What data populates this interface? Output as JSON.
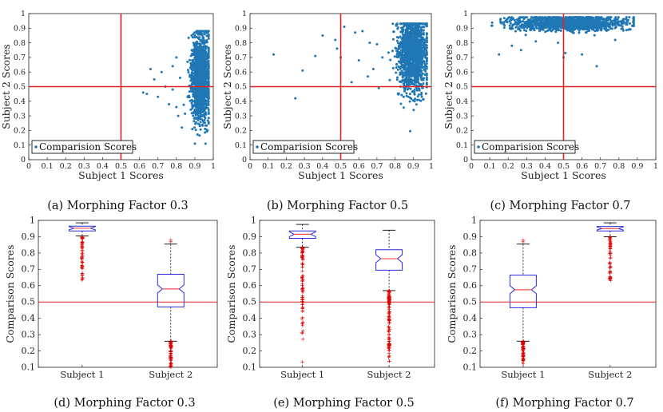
{
  "chart_data": [
    {
      "type": "scatter",
      "caption": "(a) Morphing Factor 0.3",
      "xlabel": "Subject 1 Scores",
      "ylabel": "Subject 2 Scores",
      "xlim": [
        0,
        1
      ],
      "ylim": [
        0,
        1
      ],
      "xticks": [
        "0",
        "0.1",
        "0.2",
        "0.3",
        "0.4",
        "0.5",
        "0.6",
        "0.7",
        "0.8",
        "0.9",
        "1"
      ],
      "yticks": [
        "0",
        "0.1",
        "0.2",
        "0.3",
        "0.4",
        "0.5",
        "0.6",
        "0.7",
        "0.8",
        "0.9",
        "1"
      ],
      "legend": "Comparision Scores",
      "legend_position": "bottom-left",
      "threshold_x": 0.5,
      "threshold_y": 0.5,
      "cloud": {
        "count": 1400,
        "x_mean": 0.93,
        "x_sd": 0.025,
        "x_range": [
          0.84,
          0.975
        ],
        "y_mean": 0.56,
        "y_sd": 0.15,
        "y_range": [
          0.11,
          0.88
        ]
      },
      "outliers": [
        [
          0.62,
          0.46
        ],
        [
          0.64,
          0.45
        ],
        [
          0.66,
          0.62
        ],
        [
          0.68,
          0.55
        ],
        [
          0.7,
          0.43
        ],
        [
          0.72,
          0.6
        ],
        [
          0.74,
          0.5
        ],
        [
          0.76,
          0.38
        ],
        [
          0.78,
          0.64
        ],
        [
          0.8,
          0.7
        ],
        [
          0.81,
          0.3
        ],
        [
          0.82,
          0.56
        ],
        [
          0.83,
          0.22
        ],
        [
          0.78,
          0.48
        ],
        [
          0.8,
          0.36
        ]
      ]
    },
    {
      "type": "scatter",
      "caption": "(b) Morphing Factor 0.5",
      "xlabel": "Subject 1 Scores",
      "ylabel": "Subject 2 Scores",
      "xlim": [
        0,
        1
      ],
      "ylim": [
        0,
        1
      ],
      "xticks": [
        "0",
        "0.1",
        "0.2",
        "0.3",
        "0.4",
        "0.5",
        "0.6",
        "0.7",
        "0.8",
        "0.9",
        "1"
      ],
      "yticks": [
        "0",
        "0.1",
        "0.2",
        "0.3",
        "0.4",
        "0.5",
        "0.6",
        "0.7",
        "0.8",
        "0.9",
        "1"
      ],
      "legend": "Comparision Scores",
      "legend_position": "bottom-left",
      "threshold_x": 0.5,
      "threshold_y": 0.5,
      "cloud": {
        "count": 1400,
        "x_mean": 0.895,
        "x_sd": 0.04,
        "x_range": [
          0.74,
          0.975
        ],
        "y_mean": 0.73,
        "y_sd": 0.13,
        "y_range": [
          0.12,
          0.93
        ]
      },
      "outliers": [
        [
          0.13,
          0.72
        ],
        [
          0.25,
          0.42
        ],
        [
          0.29,
          0.61
        ],
        [
          0.36,
          0.71
        ],
        [
          0.4,
          0.85
        ],
        [
          0.47,
          0.82
        ],
        [
          0.48,
          0.76
        ],
        [
          0.5,
          0.7
        ],
        [
          0.52,
          0.91
        ],
        [
          0.56,
          0.53
        ],
        [
          0.6,
          0.68
        ],
        [
          0.62,
          0.88
        ],
        [
          0.65,
          0.57
        ],
        [
          0.66,
          0.8
        ],
        [
          0.68,
          0.62
        ],
        [
          0.7,
          0.79
        ],
        [
          0.71,
          0.49
        ],
        [
          0.73,
          0.7
        ],
        [
          0.58,
          0.87
        ]
      ]
    },
    {
      "type": "scatter",
      "caption": "(c) Morphing Factor 0.7",
      "xlabel": "Subject 1 Scores",
      "ylabel": "Subject 2 Scores",
      "xlim": [
        0,
        1
      ],
      "ylim": [
        0,
        1
      ],
      "xticks": [
        "0",
        "0.1",
        "0.2",
        "0.3",
        "0.4",
        "0.5",
        "0.6",
        "0.7",
        "0.8",
        "0.9",
        "1"
      ],
      "yticks": [
        "0",
        "0.1",
        "0.2",
        "0.3",
        "0.4",
        "0.5",
        "0.6",
        "0.7",
        "0.8",
        "0.9",
        "1"
      ],
      "legend": "Comparision Scores",
      "legend_position": "bottom-left",
      "threshold_x": 0.5,
      "threshold_y": 0.5,
      "cloud": {
        "count": 1400,
        "x_mean": 0.53,
        "x_sd": 0.15,
        "x_range": [
          0.11,
          0.88
        ],
        "y_mean": 0.935,
        "y_sd": 0.025,
        "y_range": [
          0.84,
          0.975
        ]
      },
      "outliers": [
        [
          0.15,
          0.72
        ],
        [
          0.27,
          0.75
        ],
        [
          0.47,
          0.8
        ],
        [
          0.5,
          0.7
        ],
        [
          0.51,
          0.73
        ],
        [
          0.6,
          0.72
        ],
        [
          0.68,
          0.64
        ],
        [
          0.35,
          0.81
        ],
        [
          0.78,
          0.82
        ],
        [
          0.22,
          0.78
        ]
      ]
    },
    {
      "type": "box",
      "caption": "(d) Morphing Factor 0.3",
      "ylabel": "Comparison Scores",
      "categories": [
        "Subject 1",
        "Subject 2"
      ],
      "ylim": [
        0.1,
        1.0
      ],
      "yticks": [
        "0.1",
        "0.2",
        "0.3",
        "0.4",
        "0.5",
        "0.6",
        "0.7",
        "0.8",
        "0.9",
        "1"
      ],
      "threshold_y": 0.5,
      "boxes": [
        {
          "q1": 0.935,
          "median": 0.952,
          "q3": 0.965,
          "whisker_low": 0.905,
          "whisker_high": 0.985,
          "outliers_range": [
            0.63,
            0.9
          ],
          "outlier_count": 60
        },
        {
          "q1": 0.47,
          "median": 0.58,
          "q3": 0.67,
          "whisker_low": 0.26,
          "whisker_high": 0.855,
          "outliers_range": [
            0.1,
            0.26
          ],
          "outlier_count": 70,
          "extra_outliers": [
            0.88,
            0.87
          ]
        }
      ]
    },
    {
      "type": "box",
      "caption": "(e) Morphing Factor 0.5",
      "ylabel": "Comparison Scores",
      "categories": [
        "Subject 1",
        "Subject 2"
      ],
      "ylim": [
        0.1,
        1.0
      ],
      "yticks": [
        "0.1",
        "0.2",
        "0.3",
        "0.4",
        "0.5",
        "0.6",
        "0.7",
        "0.8",
        "0.9",
        "1"
      ],
      "threshold_y": 0.5,
      "boxes": [
        {
          "q1": 0.89,
          "median": 0.915,
          "q3": 0.935,
          "whisker_low": 0.835,
          "whisker_high": 0.975,
          "outliers_range": [
            0.27,
            0.835
          ],
          "outlier_count": 90,
          "extra_outliers": [
            0.135
          ]
        },
        {
          "q1": 0.695,
          "median": 0.765,
          "q3": 0.82,
          "whisker_low": 0.57,
          "whisker_high": 0.94,
          "outliers_range": [
            0.12,
            0.57
          ],
          "outlier_count": 130
        }
      ]
    },
    {
      "type": "box",
      "caption": "(f) Morphing Factor 0.7",
      "ylabel": "Comparison Scores",
      "categories": [
        "Subject 1",
        "Subject 2"
      ],
      "ylim": [
        0.1,
        1.0
      ],
      "yticks": [
        "0.1",
        "0.2",
        "0.3",
        "0.4",
        "0.5",
        "0.6",
        "0.7",
        "0.8",
        "0.9",
        "1"
      ],
      "threshold_y": 0.5,
      "boxes": [
        {
          "q1": 0.465,
          "median": 0.575,
          "q3": 0.665,
          "whisker_low": 0.26,
          "whisker_high": 0.855,
          "outliers_range": [
            0.12,
            0.26
          ],
          "outlier_count": 70,
          "extra_outliers": [
            0.88,
            0.87
          ]
        },
        {
          "q1": 0.935,
          "median": 0.95,
          "q3": 0.963,
          "whisker_low": 0.9,
          "whisker_high": 0.985,
          "outliers_range": [
            0.63,
            0.9
          ],
          "outlier_count": 60
        }
      ]
    }
  ],
  "colors": {
    "points": "#1f77b4",
    "threshold": "#dd2222",
    "box": "#2a2ae0",
    "median": "#ff4a4a",
    "outlier": "#dd0000",
    "axis": "#222222"
  }
}
